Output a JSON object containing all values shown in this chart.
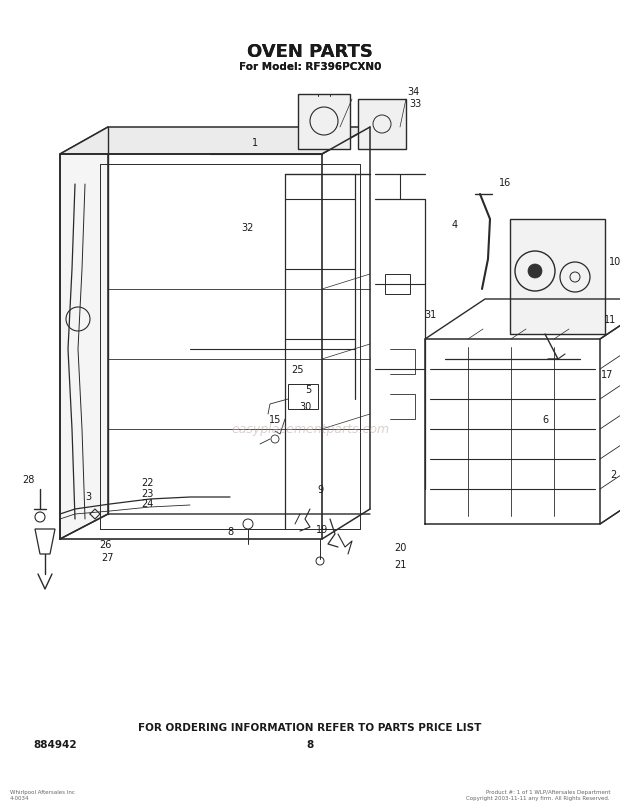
{
  "title": "OVEN PARTS",
  "subtitle": "For Model: RF396PCXN0",
  "footer_text": "FOR ORDERING INFORMATION REFER TO PARTS PRICE LIST",
  "part_number": "884942",
  "page_number": "8",
  "background_color": "#ffffff",
  "line_color": "#2a2a2a",
  "text_color": "#1a1a1a",
  "watermark_text": "easyplacementparts.com",
  "fig_width": 6.2,
  "fig_height": 8.04,
  "dpi": 100,
  "copyright_left": "Whirlpool Aftersales Inc\n4-0034",
  "copyright_right": "Product #: 1 of 1 WLP/Aftersales Department\nCopyright 2003-11-11 any firm. All Rights Reserved."
}
